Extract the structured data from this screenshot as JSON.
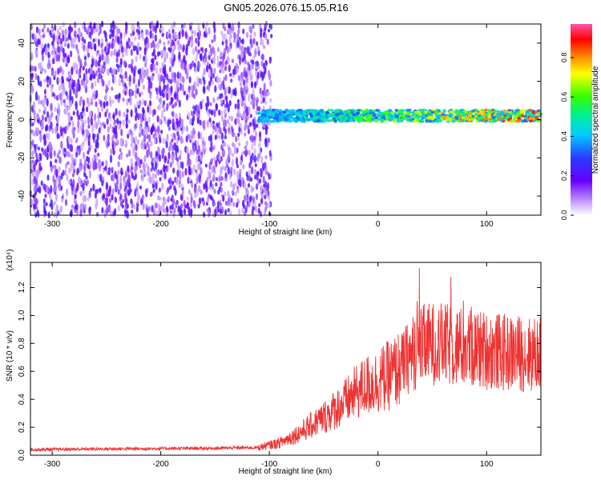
{
  "title": "GN05.2026.076.15.05.R16",
  "chart_data": [
    {
      "type": "heatmap",
      "xlabel": "Height of straight line (km)",
      "ylabel": "Frequency (Hz)",
      "xlim": [
        -320,
        150
      ],
      "ylim": [
        -50,
        50
      ],
      "x_ticks": [
        -300,
        -200,
        -100,
        0,
        100
      ],
      "y_ticks": [
        -40,
        -20,
        0,
        20,
        40
      ],
      "colorbar": {
        "label": "Normalized spectral amplitude",
        "range": [
          0,
          0.97
        ],
        "ticks": [
          0.0,
          0.2,
          0.4,
          0.6,
          0.8
        ]
      },
      "regions": [
        {
          "x_range": [
            -320,
            -98
          ],
          "freq_range": [
            -50,
            50
          ],
          "amplitude_range": [
            0.05,
            0.25
          ]
        },
        {
          "x_range": [
            -110,
            150
          ],
          "freq_center": 2,
          "freq_halfwidth": 3,
          "amplitude_range": [
            0.3,
            0.97
          ]
        }
      ]
    },
    {
      "type": "line",
      "xlabel": "Height of straight line (km)",
      "ylabel": "SNR (10 * v/v)",
      "y_multiplier": "(x10⁴)",
      "xlim": [
        -320,
        150
      ],
      "ylim": [
        0,
        1.38
      ],
      "x_ticks": [
        -300,
        -200,
        -100,
        0,
        100
      ],
      "y_ticks": [
        0.0,
        0.2,
        0.4,
        0.6,
        0.8,
        1.0,
        1.2
      ],
      "color": "#ee3333",
      "envelope": {
        "x": [
          -320,
          -250,
          -150,
          -110,
          -90,
          -70,
          -50,
          -30,
          -20,
          -10,
          0,
          10,
          20,
          30,
          40,
          50,
          60,
          70,
          80,
          90,
          100,
          110,
          120,
          130,
          140,
          150
        ],
        "y": [
          0.04,
          0.045,
          0.05,
          0.055,
          0.09,
          0.17,
          0.27,
          0.38,
          0.45,
          0.5,
          0.53,
          0.57,
          0.62,
          0.72,
          0.78,
          0.8,
          0.79,
          0.78,
          0.77,
          0.76,
          0.75,
          0.74,
          0.73,
          0.73,
          0.72,
          0.72
        ]
      }
    }
  ]
}
